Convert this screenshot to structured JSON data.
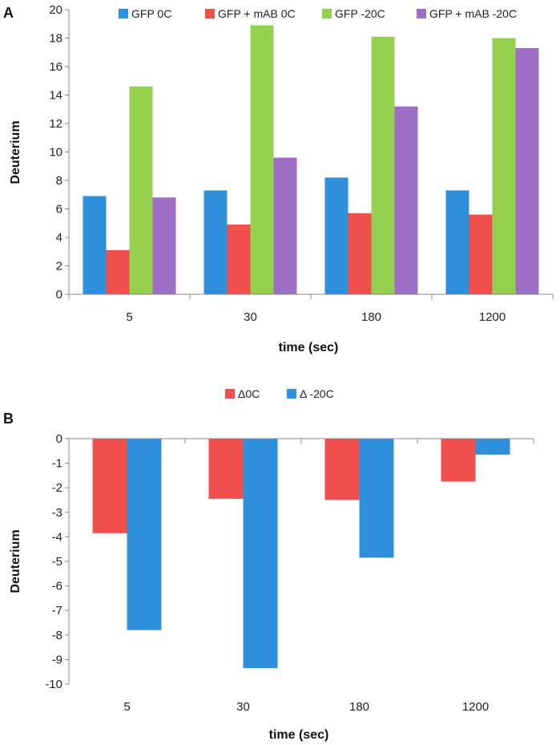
{
  "chart_data": [
    {
      "panel": "A",
      "type": "bar",
      "categories": [
        "5",
        "30",
        "180",
        "1200"
      ],
      "xlabel": "time (sec)",
      "ylabel": "Deuterium",
      "ylim": [
        0,
        20
      ],
      "yticks": [
        "0",
        "2",
        "4",
        "6",
        "8",
        "10",
        "12",
        "14",
        "16",
        "18",
        "20"
      ],
      "legend_position": "top",
      "series": [
        {
          "name": "GFP 0C",
          "color": "#2e8fdd",
          "values": [
            6.9,
            7.3,
            8.2,
            7.3
          ]
        },
        {
          "name": "GFP + mAB 0C",
          "color": "#f0504d",
          "values": [
            3.1,
            4.9,
            5.7,
            5.6
          ]
        },
        {
          "name": "GFP -20C",
          "color": "#95d04e",
          "values": [
            14.6,
            18.9,
            18.1,
            18.0
          ]
        },
        {
          "name": "GFP + mAB -20C",
          "color": "#9c6fc4",
          "values": [
            6.8,
            9.6,
            13.2,
            17.3
          ]
        }
      ]
    },
    {
      "panel": "B",
      "type": "bar",
      "categories": [
        "5",
        "30",
        "180",
        "1200"
      ],
      "xlabel": "time (sec)",
      "ylabel": "Deuterium",
      "ylim": [
        -10,
        0
      ],
      "yticks": [
        "0",
        "-1",
        "-2",
        "-3",
        "-4",
        "-5",
        "-6",
        "-7",
        "-8",
        "-9",
        "-10"
      ],
      "legend_position": "top",
      "series": [
        {
          "name": "Δ0C",
          "color": "#f0504d",
          "values": [
            -3.85,
            -2.45,
            -2.5,
            -1.75
          ]
        },
        {
          "name": "Δ -20C",
          "color": "#2e8fdd",
          "values": [
            -7.8,
            -9.35,
            -4.85,
            -0.65
          ]
        }
      ]
    }
  ]
}
